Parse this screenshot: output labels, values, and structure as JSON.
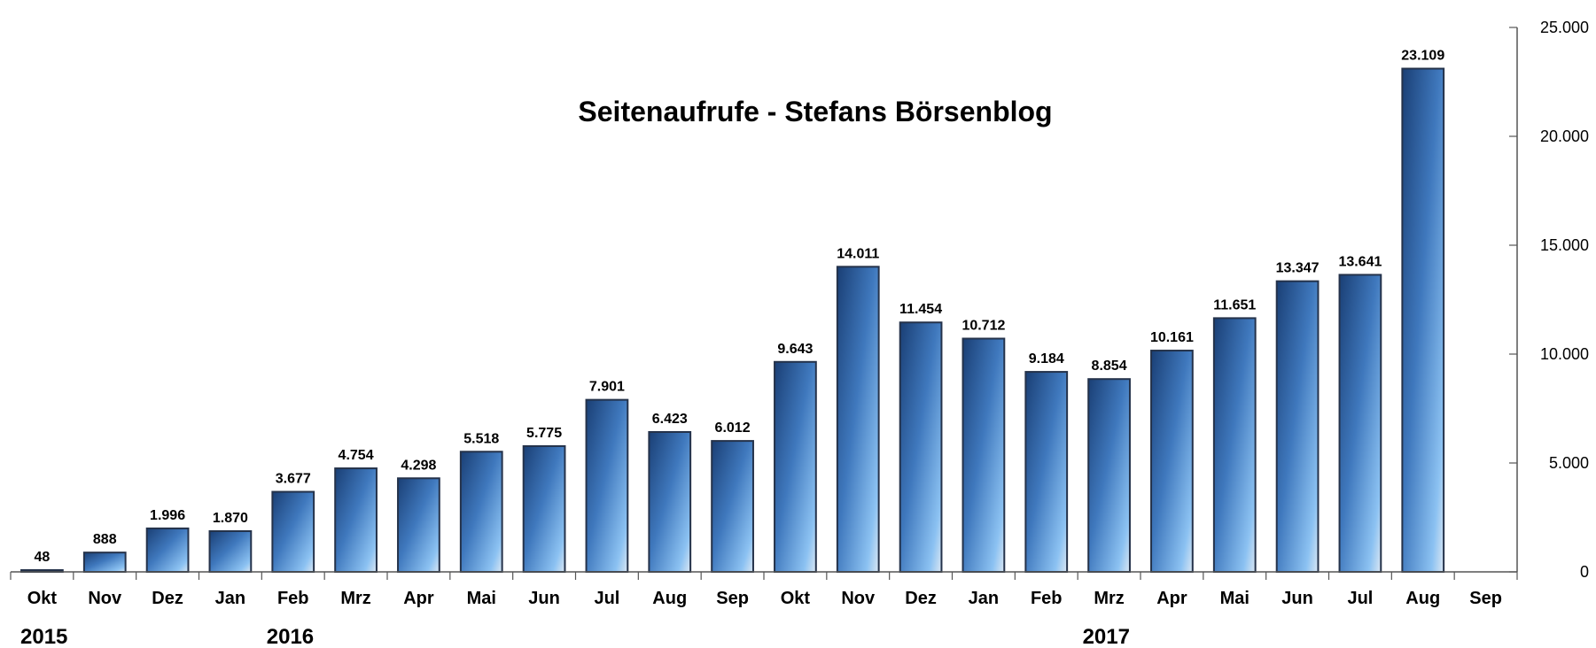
{
  "chart_data": {
    "type": "bar",
    "title": "Seitenaufrufe - Stefans Börsenblog",
    "categories": [
      "Okt",
      "Nov",
      "Dez",
      "Jan",
      "Feb",
      "Mrz",
      "Apr",
      "Mai",
      "Jun",
      "Jul",
      "Aug",
      "Sep",
      "Okt",
      "Nov",
      "Dez",
      "Jan",
      "Feb",
      "Mrz",
      "Apr",
      "Mai",
      "Jun",
      "Jul",
      "Aug",
      "Sep"
    ],
    "values": [
      48,
      888,
      1996,
      1870,
      3677,
      4754,
      4298,
      5518,
      5775,
      7901,
      6423,
      6012,
      9643,
      14011,
      11454,
      10712,
      9184,
      8854,
      10161,
      11651,
      13347,
      13641,
      23109,
      null
    ],
    "value_labels": [
      "48",
      "888",
      "1.996",
      "1.870",
      "3.677",
      "4.754",
      "4.298",
      "5.518",
      "5.775",
      "7.901",
      "6.423",
      "6.012",
      "9.643",
      "14.011",
      "11.454",
      "10.712",
      "9.184",
      "8.854",
      "10.161",
      "11.651",
      "13.347",
      "13.641",
      "23.109",
      ""
    ],
    "year_labels": [
      {
        "text": "2015",
        "category_index": 0
      },
      {
        "text": "2016",
        "category_index": 4
      },
      {
        "text": "2017",
        "category_index": 17
      }
    ],
    "ylim": [
      0,
      25000
    ],
    "y_ticks": [
      0,
      5000,
      10000,
      15000,
      20000,
      25000
    ],
    "y_tick_labels": [
      "0",
      "5.000",
      "10.000",
      "15.000",
      "20.000",
      "25.000"
    ],
    "y_axis_position": "right",
    "grid": false,
    "bar_color_dark": "#1f4e8c",
    "bar_color_light": "#9ecbf2"
  }
}
